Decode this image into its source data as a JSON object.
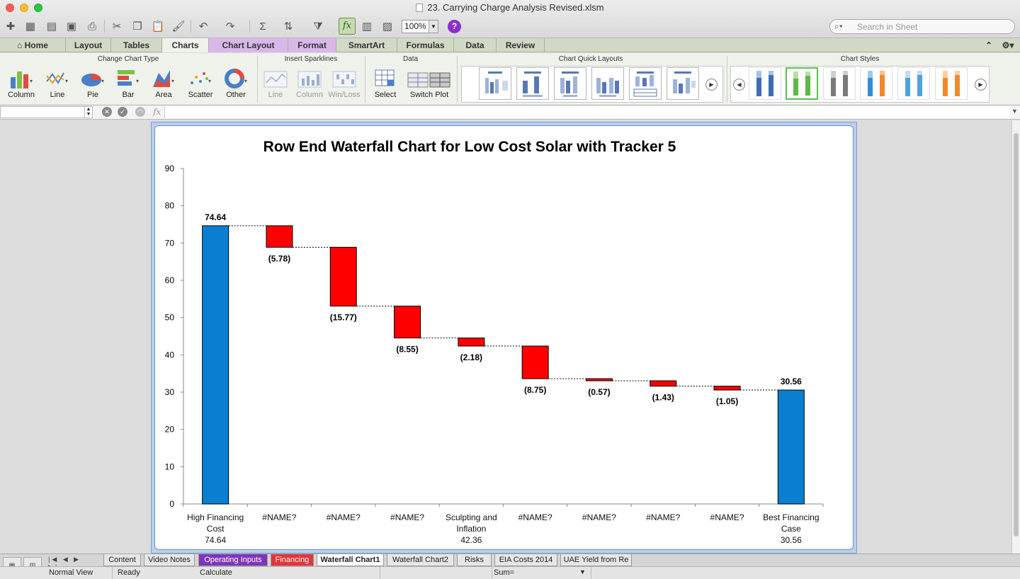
{
  "window": {
    "title": "23. Carrying Charge Analysis Revised.xlsm"
  },
  "toolbar": {
    "zoom": "100%",
    "search_placeholder": "Search in Sheet",
    "help_label": "?",
    "fx_label": "fx"
  },
  "ribbon_tabs": [
    "Home",
    "Layout",
    "Tables",
    "Charts",
    "Chart Layout",
    "Format",
    "SmartArt",
    "Formulas",
    "Data",
    "Review"
  ],
  "ribbon": {
    "groups": {
      "change_chart_type": "Change Chart Type",
      "insert_sparklines": "Insert Sparklines",
      "data": "Data",
      "chart_quick_layouts": "Chart Quick Layouts",
      "chart_styles": "Chart Styles"
    },
    "chart_types": [
      "Column",
      "Line",
      "Pie",
      "Bar",
      "Area",
      "Scatter",
      "Other"
    ],
    "sparklines": [
      "Line",
      "Column",
      "Win/Loss"
    ],
    "data_buttons": [
      "Select",
      "Switch Plot"
    ]
  },
  "formula_bar": {
    "fx": "fx"
  },
  "sheet_tabs": [
    "Content",
    "Video Notes",
    "Operating Inputs",
    "Financing",
    "Waterfall Chart1",
    "Waterfall Chart2",
    "Risks",
    "EIA Costs 2014",
    "UAE Yield from Re"
  ],
  "status_bar": {
    "view": "Normal View",
    "state": "Ready",
    "calc": "Calculate",
    "sum": "Sum="
  },
  "colors": {
    "total_bar": "#0a7fd1",
    "decrease_bar": "#ff0000",
    "ribbon_green": "#cfd9c6",
    "tab_purple": "#7e36b8",
    "tab_red": "#e2353a"
  },
  "chart_data": {
    "type": "bar",
    "subtype": "waterfall",
    "title": "Row End Waterfall Chart for Low Cost Solar with Tracker 5",
    "ylim": [
      0,
      90
    ],
    "yticks": [
      0,
      10,
      20,
      30,
      40,
      50,
      60,
      70,
      80,
      90
    ],
    "grid": false,
    "categories": [
      {
        "label": [
          "High Financing",
          "Cost",
          "74.64"
        ]
      },
      {
        "label": [
          "#NAME?"
        ]
      },
      {
        "label": [
          "#NAME?"
        ]
      },
      {
        "label": [
          "#NAME?"
        ]
      },
      {
        "label": [
          "Sculpting and",
          "Inflation",
          "42.36"
        ]
      },
      {
        "label": [
          "#NAME?"
        ]
      },
      {
        "label": [
          "#NAME?"
        ]
      },
      {
        "label": [
          "#NAME?"
        ]
      },
      {
        "label": [
          "#NAME?"
        ]
      },
      {
        "label": [
          "Best Financing",
          "Case",
          "30.56"
        ]
      }
    ],
    "bars": [
      {
        "kind": "total",
        "low": 0,
        "high": 74.64,
        "label": "74.64"
      },
      {
        "kind": "decrease",
        "low": 68.86,
        "high": 74.64,
        "label": "(5.78)"
      },
      {
        "kind": "decrease",
        "low": 53.09,
        "high": 68.86,
        "label": "(15.77)"
      },
      {
        "kind": "decrease",
        "low": 44.54,
        "high": 53.09,
        "label": "(8.55)"
      },
      {
        "kind": "decrease",
        "low": 42.36,
        "high": 44.54,
        "label": "(2.18)"
      },
      {
        "kind": "decrease",
        "low": 33.61,
        "high": 42.36,
        "label": "(8.75)"
      },
      {
        "kind": "decrease",
        "low": 33.04,
        "high": 33.61,
        "label": "(0.57)"
      },
      {
        "kind": "decrease",
        "low": 31.61,
        "high": 33.04,
        "label": "(1.43)"
      },
      {
        "kind": "decrease",
        "low": 30.56,
        "high": 31.61,
        "label": "(1.05)"
      },
      {
        "kind": "total",
        "low": 0,
        "high": 30.56,
        "label": "30.56"
      }
    ]
  }
}
